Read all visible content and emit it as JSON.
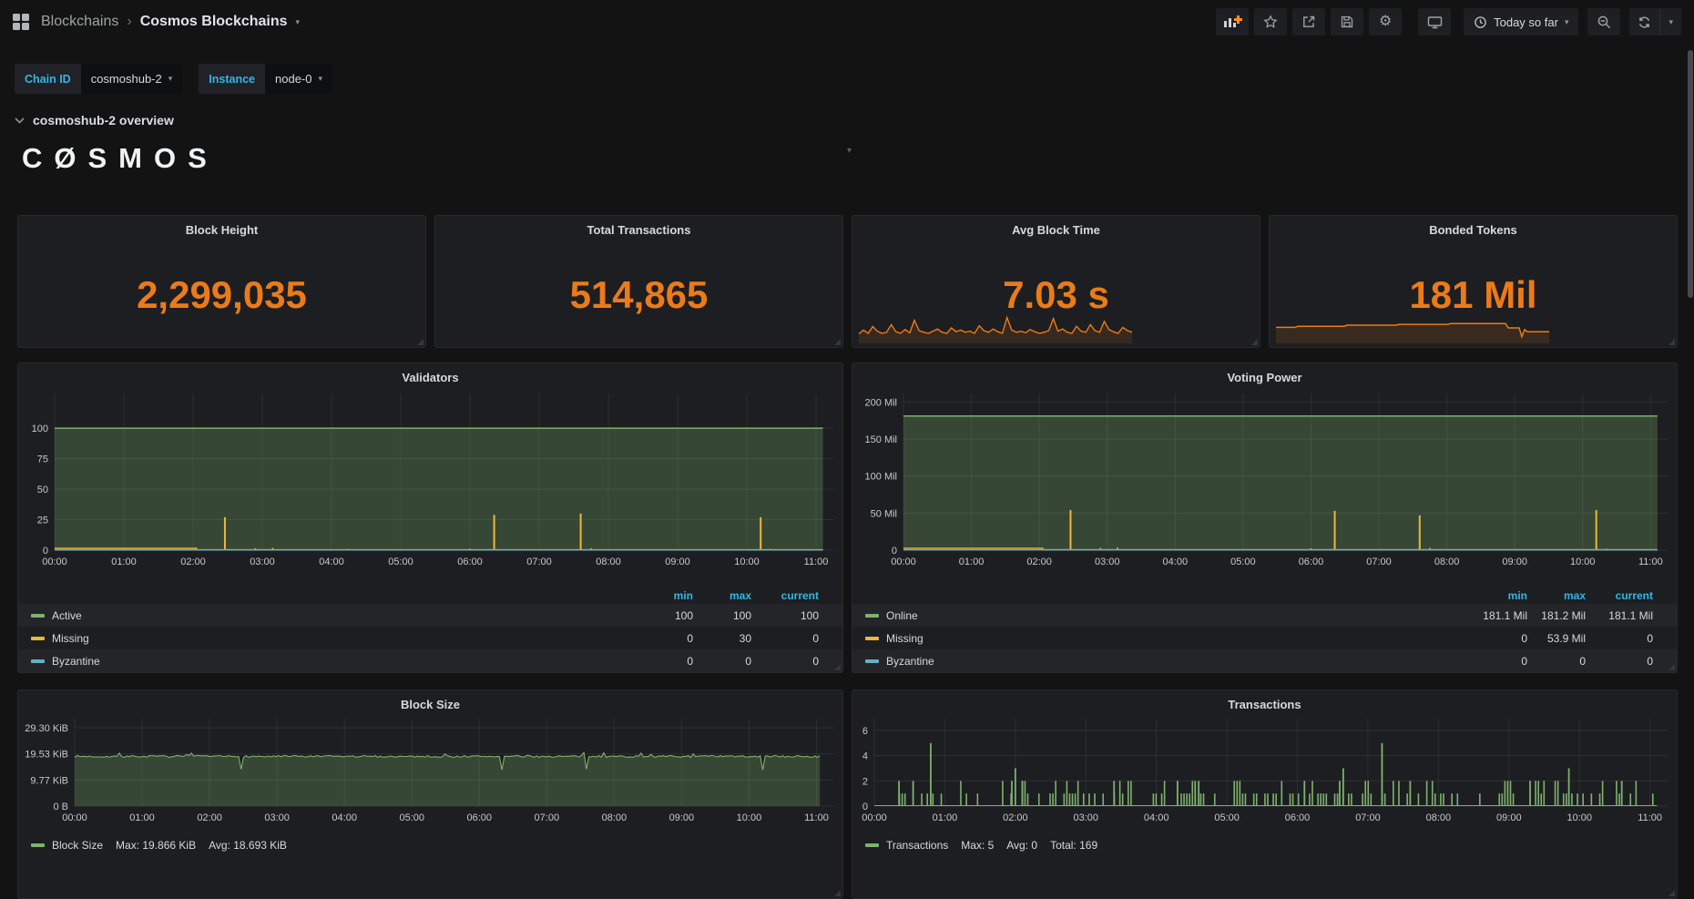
{
  "nav": {
    "breadcrumb": {
      "root": "Blockchains",
      "separator": "›",
      "current": "Cosmos Blockchains"
    },
    "time_range_label": "Today so far"
  },
  "filters": {
    "chain_label": "Chain ID",
    "chain_value": "cosmoshub-2",
    "instance_label": "Instance",
    "instance_value": "node-0"
  },
  "row_header": {
    "title": "cosmoshub-2 overview"
  },
  "logo_text": "CØSMOS",
  "stats": [
    {
      "title": "Block Height",
      "value": "2,299,035"
    },
    {
      "title": "Total Transactions",
      "value": "514,865"
    },
    {
      "title": "Avg Block Time",
      "value": "7.03 s"
    },
    {
      "title": "Bonded Tokens",
      "value": "181 Mil"
    }
  ],
  "colors": {
    "accent_orange": "#eb7b18",
    "green": "#7eb26d",
    "yellow": "#eab839",
    "blue": "#64b0c8",
    "cyan": "#33b5e5",
    "panel_bg": "#1d1e21",
    "page_bg": "#131314"
  },
  "sparklines": {
    "avg_block_time": [
      28,
      42,
      30,
      55,
      38,
      30,
      34,
      62,
      36,
      30,
      44,
      32,
      78,
      40,
      34,
      30,
      38,
      46,
      34,
      30,
      50,
      36,
      42,
      34,
      38,
      30,
      58,
      40,
      34,
      46,
      36,
      30,
      88,
      42,
      34,
      38,
      32,
      44,
      36,
      30,
      34,
      40,
      84,
      38,
      46,
      34,
      30,
      56,
      38,
      34,
      62,
      40,
      34,
      74,
      44,
      36,
      30,
      52,
      40,
      34
    ],
    "bonded_tokens": [
      [
        0,
        52
      ],
      [
        7,
        52
      ],
      [
        8,
        56
      ],
      [
        25,
        56
      ],
      [
        26,
        60
      ],
      [
        44,
        60
      ],
      [
        45,
        63
      ],
      [
        63,
        63
      ],
      [
        64,
        66
      ],
      [
        84,
        66
      ],
      [
        85,
        50
      ],
      [
        89,
        50
      ],
      [
        90,
        18
      ],
      [
        91,
        44
      ],
      [
        92,
        36
      ],
      [
        100,
        36
      ]
    ]
  },
  "chart_data": [
    {
      "type": "area",
      "title": "Validators",
      "x_ticks": [
        "00:00",
        "01:00",
        "02:00",
        "03:00",
        "04:00",
        "05:00",
        "06:00",
        "07:00",
        "08:00",
        "09:00",
        "10:00",
        "11:00"
      ],
      "x_max": 11.25,
      "y_max": 124,
      "y_ticks": [
        {
          "v": 0,
          "label": "0"
        },
        {
          "v": 25,
          "label": "25"
        },
        {
          "v": 50,
          "label": "50"
        },
        {
          "v": 75,
          "label": "75"
        },
        {
          "v": 100,
          "label": "100"
        }
      ],
      "legend_headers": [
        "min",
        "max",
        "current"
      ],
      "series": [
        {
          "name": "Active",
          "color": "#7eb26d",
          "style": "area-flat",
          "value": 100,
          "min": "100",
          "max": "100",
          "current": "100"
        },
        {
          "name": "Missing",
          "color": "#eab839",
          "style": "spikes",
          "baseline": [
            [
              0,
              1.5
            ],
            [
              2.05,
              1.5
            ],
            [
              2.05,
              0.3
            ],
            [
              11.1,
              0.3
            ]
          ],
          "spikes": [
            [
              2.46,
              27
            ],
            [
              6.35,
              29
            ],
            [
              7.6,
              30
            ],
            [
              10.2,
              27
            ]
          ],
          "bumps": [
            [
              2.9,
              1.6
            ],
            [
              3.15,
              1.9
            ],
            [
              4.25,
              1.0
            ],
            [
              6.0,
              1.2
            ],
            [
              7.75,
              1.5
            ],
            [
              10.35,
              1.0
            ]
          ],
          "min": "0",
          "max": "30",
          "current": "0"
        },
        {
          "name": "Byzantine",
          "color": "#64b0c8",
          "style": "line-flat",
          "value": 0.2,
          "min": "0",
          "max": "0",
          "current": "0"
        }
      ]
    },
    {
      "type": "area",
      "title": "Voting Power",
      "x_ticks": [
        "00:00",
        "01:00",
        "02:00",
        "03:00",
        "04:00",
        "05:00",
        "06:00",
        "07:00",
        "08:00",
        "09:00",
        "10:00",
        "11:00"
      ],
      "x_max": 11.25,
      "y_max": 204,
      "y_ticks": [
        {
          "v": 0,
          "label": "0"
        },
        {
          "v": 50,
          "label": "50 Mil"
        },
        {
          "v": 100,
          "label": "100 Mil"
        },
        {
          "v": 150,
          "label": "150 Mil"
        },
        {
          "v": 200,
          "label": "200 Mil"
        }
      ],
      "legend_headers": [
        "min",
        "max",
        "current"
      ],
      "series": [
        {
          "name": "Online",
          "color": "#7eb26d",
          "style": "area-flat",
          "value": 181,
          "min": "181.1 Mil",
          "max": "181.2 Mil",
          "current": "181.1 Mil"
        },
        {
          "name": "Missing",
          "color": "#eab839",
          "style": "spikes",
          "baseline": [
            [
              0,
              2.5
            ],
            [
              2.05,
              2.5
            ],
            [
              2.05,
              0.5
            ],
            [
              11.1,
              0.5
            ]
          ],
          "spikes": [
            [
              2.46,
              54
            ],
            [
              6.35,
              53
            ],
            [
              7.6,
              47
            ],
            [
              10.2,
              54
            ]
          ],
          "bumps": [
            [
              2.9,
              3
            ],
            [
              3.15,
              3.5
            ],
            [
              6.0,
              2.5
            ],
            [
              7.75,
              3
            ],
            [
              10.35,
              2
            ]
          ],
          "min": "0",
          "max": "53.9 Mil",
          "current": "0"
        },
        {
          "name": "Byzantine",
          "color": "#64b0c8",
          "style": "line-flat",
          "value": 0.4,
          "min": "0",
          "max": "0",
          "current": "0"
        }
      ]
    },
    {
      "type": "area-noisy",
      "title": "Block Size",
      "x_ticks": [
        "00:00",
        "01:00",
        "02:00",
        "03:00",
        "04:00",
        "05:00",
        "06:00",
        "07:00",
        "08:00",
        "09:00",
        "10:00",
        "11:00"
      ],
      "x_max": 11.25,
      "y_max": 30.7,
      "y_ticks": [
        {
          "v": 0,
          "label": "0 B"
        },
        {
          "v": 9.77,
          "label": "9.77 KiB"
        },
        {
          "v": 19.53,
          "label": "19.53 KiB"
        },
        {
          "v": 29.3,
          "label": "29.30 KiB"
        }
      ],
      "color": "#7eb26d",
      "base": 18.6,
      "noise": 0.7,
      "seed": 7,
      "dips": [
        [
          2.46,
          13.8
        ],
        [
          6.35,
          13.6
        ],
        [
          7.6,
          13.9
        ],
        [
          10.2,
          13.5
        ]
      ],
      "legend": {
        "name": "Block Size",
        "max": "Max: 19.866 KiB",
        "avg": "Avg: 18.693 KiB"
      }
    },
    {
      "type": "bars",
      "title": "Transactions",
      "x_ticks": [
        "00:00",
        "01:00",
        "02:00",
        "03:00",
        "04:00",
        "05:00",
        "06:00",
        "07:00",
        "08:00",
        "09:00",
        "10:00",
        "11:00"
      ],
      "x_max": 11.25,
      "y_max": 6.5,
      "y_ticks": [
        {
          "v": 0,
          "label": "0"
        },
        {
          "v": 2,
          "label": "2"
        },
        {
          "v": 4,
          "label": "4"
        },
        {
          "v": 6,
          "label": "6"
        }
      ],
      "color": "#7eb26d",
      "seed": 13,
      "peaks": [
        [
          0.35,
          2
        ],
        [
          0.55,
          2
        ],
        [
          0.8,
          5
        ],
        [
          1.95,
          2
        ],
        [
          2.0,
          3
        ],
        [
          2.1,
          2
        ],
        [
          3.4,
          2
        ],
        [
          4.3,
          2
        ],
        [
          4.55,
          2
        ],
        [
          4.6,
          2
        ],
        [
          6.1,
          2
        ],
        [
          6.6,
          2
        ],
        [
          6.65,
          3
        ],
        [
          7.2,
          5
        ],
        [
          7.6,
          2
        ],
        [
          9.3,
          2
        ],
        [
          9.85,
          3
        ],
        [
          10.6,
          2
        ]
      ],
      "legend": {
        "name": "Transactions",
        "max": "Max: 5",
        "avg": "Avg: 0",
        "total": "Total: 169"
      }
    }
  ]
}
